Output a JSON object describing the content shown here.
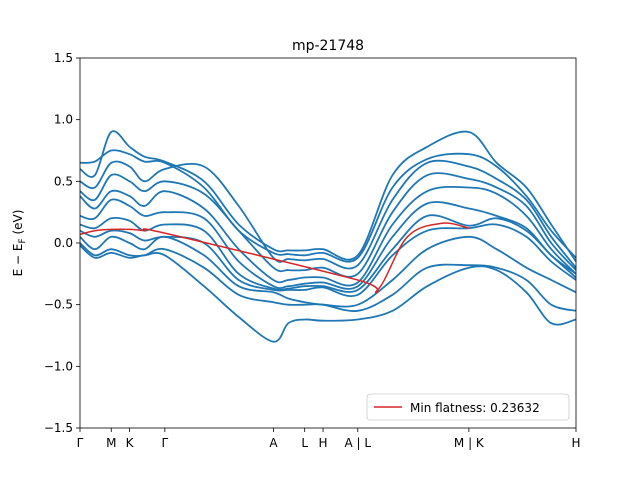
{
  "chart_data": {
    "type": "line",
    "title": "mp-21748",
    "xlabel": "",
    "ylabel": "E − E_F (eV)",
    "ylim": [
      -1.5,
      1.5
    ],
    "xlim": [
      0,
      10
    ],
    "yticks": [
      -1.5,
      -1.0,
      -0.5,
      0.0,
      0.5,
      1.0,
      1.5
    ],
    "ytick_labels": [
      "−1.5",
      "−1.0",
      "−0.5",
      "0.0",
      "0.5",
      "1.0",
      "1.5"
    ],
    "xticks": [
      {
        "x": 0.0,
        "label": "Γ"
      },
      {
        "x": 0.63,
        "label": "M"
      },
      {
        "x": 1.0,
        "label": "K"
      },
      {
        "x": 1.71,
        "label": "Γ"
      },
      {
        "x": 3.9,
        "label": "A"
      },
      {
        "x": 4.53,
        "label": "L"
      },
      {
        "x": 4.9,
        "label": "H"
      },
      {
        "x": 5.6,
        "label": "A | L"
      },
      {
        "x": 7.84,
        "label": "M | K"
      },
      {
        "x": 10.0,
        "label": "H"
      }
    ],
    "grid": false,
    "legend": {
      "position": "lower-right",
      "entries": [
        "Min flatness: 0.23632"
      ]
    },
    "colors": {
      "bands": "#1f77b4",
      "flat_band": "#d62728"
    },
    "series": [
      {
        "style": "bands",
        "x": [
          0.0,
          0.3,
          0.63,
          1.0,
          1.3,
          1.71,
          2.5,
          3.2,
          3.9,
          4.2,
          4.53,
          4.9,
          5.6,
          6.3,
          7.0,
          7.84,
          8.4,
          9.0,
          9.5,
          10.0
        ],
        "y": [
          0.65,
          0.66,
          0.75,
          0.72,
          0.66,
          0.65,
          0.45,
          0.1,
          -0.08,
          -0.09,
          -0.1,
          -0.08,
          -0.12,
          0.45,
          0.68,
          0.72,
          0.62,
          0.38,
          0.1,
          -0.12
        ]
      },
      {
        "style": "bands",
        "x": [
          0.0,
          0.3,
          0.63,
          1.0,
          1.3,
          1.71,
          2.5,
          3.2,
          3.9,
          4.2,
          4.53,
          4.9,
          5.6,
          6.3,
          7.0,
          7.84,
          8.4,
          9.0,
          9.5,
          10.0
        ],
        "y": [
          0.6,
          0.55,
          0.9,
          0.78,
          0.7,
          0.66,
          0.5,
          0.15,
          -0.05,
          -0.06,
          -0.06,
          -0.05,
          -0.1,
          0.55,
          0.78,
          0.9,
          0.65,
          0.45,
          0.15,
          -0.15
        ]
      },
      {
        "style": "bands",
        "x": [
          0.0,
          0.3,
          0.63,
          1.0,
          1.3,
          1.71,
          2.5,
          3.2,
          3.9,
          4.2,
          4.53,
          4.9,
          5.6,
          6.3,
          7.0,
          7.84,
          8.4,
          9.0,
          9.5,
          10.0
        ],
        "y": [
          0.5,
          0.45,
          0.65,
          0.62,
          0.5,
          0.6,
          0.62,
          0.3,
          -0.12,
          -0.13,
          -0.14,
          -0.13,
          -0.18,
          0.35,
          0.65,
          0.62,
          0.52,
          0.35,
          0.05,
          -0.2
        ]
      },
      {
        "style": "bands",
        "x": [
          0.0,
          0.3,
          0.63,
          1.0,
          1.3,
          1.71,
          2.5,
          3.2,
          3.9,
          4.2,
          4.53,
          4.9,
          5.6,
          6.3,
          7.0,
          7.84,
          8.4,
          9.0,
          9.5,
          10.0
        ],
        "y": [
          0.42,
          0.35,
          0.55,
          0.5,
          0.42,
          0.5,
          0.4,
          0.1,
          -0.2,
          -0.22,
          -0.22,
          -0.2,
          -0.25,
          0.25,
          0.55,
          0.52,
          0.45,
          0.3,
          0.0,
          -0.22
        ]
      },
      {
        "style": "bands",
        "x": [
          0.0,
          0.3,
          0.63,
          1.0,
          1.3,
          1.71,
          2.5,
          3.2,
          3.9,
          4.2,
          4.53,
          4.9,
          5.6,
          6.3,
          7.0,
          7.84,
          8.4,
          9.0,
          9.5,
          10.0
        ],
        "y": [
          0.38,
          0.28,
          0.42,
          0.38,
          0.3,
          0.42,
          0.28,
          -0.05,
          -0.3,
          -0.3,
          -0.28,
          -0.28,
          -0.32,
          0.15,
          0.42,
          0.45,
          0.4,
          0.22,
          -0.05,
          -0.25
        ]
      },
      {
        "style": "bands",
        "x": [
          0.0,
          0.3,
          0.63,
          1.0,
          1.3,
          1.71,
          2.5,
          3.2,
          3.9,
          4.2,
          4.53,
          4.9,
          5.6,
          6.3,
          7.0,
          7.84,
          8.4,
          9.0,
          9.5,
          10.0
        ],
        "y": [
          0.22,
          0.2,
          0.35,
          0.3,
          0.22,
          0.25,
          0.2,
          -0.15,
          -0.35,
          -0.35,
          -0.33,
          -0.32,
          -0.35,
          0.05,
          0.32,
          0.28,
          0.22,
          0.12,
          -0.1,
          -0.25
        ]
      },
      {
        "style": "bands",
        "x": [
          0.0,
          0.3,
          0.63,
          1.0,
          1.3,
          1.71,
          2.5,
          3.2,
          3.9,
          4.2,
          4.53,
          4.9,
          5.6,
          6.3,
          7.0,
          7.84,
          8.4,
          9.0,
          9.5,
          10.0
        ],
        "y": [
          0.15,
          0.12,
          0.2,
          0.18,
          0.1,
          0.15,
          0.1,
          -0.25,
          -0.37,
          -0.37,
          -0.35,
          -0.35,
          -0.38,
          -0.05,
          0.22,
          0.14,
          0.2,
          0.1,
          -0.1,
          -0.28
        ]
      },
      {
        "style": "bands",
        "x": [
          0.0,
          0.3,
          0.63,
          1.0,
          1.3,
          1.71,
          2.5,
          3.2,
          3.9,
          4.2,
          4.53,
          4.9,
          5.6,
          6.3,
          7.0,
          7.84,
          8.4,
          9.0,
          9.5,
          10.0
        ],
        "y": [
          0.1,
          0.05,
          0.1,
          0.08,
          0.02,
          0.05,
          0.0,
          -0.3,
          -0.38,
          -0.38,
          -0.38,
          -0.36,
          -0.42,
          -0.1,
          0.1,
          0.12,
          0.15,
          0.05,
          -0.15,
          -0.3
        ]
      },
      {
        "style": "bands",
        "x": [
          0.0,
          0.3,
          0.63,
          1.0,
          1.3,
          1.71,
          2.5,
          3.2,
          3.9,
          4.2,
          4.53,
          4.9,
          5.6,
          6.3,
          7.0,
          7.84,
          8.4,
          9.0,
          9.5,
          10.0
        ],
        "y": [
          0.05,
          -0.05,
          0.05,
          0.0,
          -0.05,
          0.05,
          -0.1,
          -0.35,
          -0.4,
          -0.45,
          -0.48,
          -0.5,
          -0.5,
          -0.3,
          -0.05,
          0.05,
          -0.05,
          -0.2,
          -0.3,
          -0.4
        ]
      },
      {
        "style": "bands",
        "x": [
          0.0,
          0.3,
          0.63,
          1.0,
          1.3,
          1.71,
          2.5,
          3.2,
          3.9,
          4.2,
          4.53,
          4.9,
          5.6,
          6.3,
          7.0,
          7.84,
          8.4,
          9.0,
          9.5,
          10.0
        ],
        "y": [
          0.0,
          -0.1,
          -0.05,
          -0.1,
          -0.1,
          -0.05,
          -0.2,
          -0.42,
          -0.48,
          -0.5,
          -0.5,
          -0.5,
          -0.55,
          -0.42,
          -0.2,
          -0.18,
          -0.2,
          -0.3,
          -0.5,
          -0.55
        ]
      },
      {
        "style": "bands",
        "x": [
          0.0,
          0.3,
          0.63,
          1.0,
          1.3,
          1.71,
          2.5,
          3.2,
          3.9,
          4.2,
          4.53,
          4.9,
          5.6,
          6.3,
          7.0,
          7.84,
          8.4,
          9.0,
          9.5,
          10.0
        ],
        "y": [
          -0.02,
          -0.12,
          -0.08,
          -0.12,
          -0.1,
          -0.1,
          -0.35,
          -0.6,
          -0.8,
          -0.65,
          -0.62,
          -0.63,
          -0.62,
          -0.55,
          -0.35,
          -0.2,
          -0.22,
          -0.4,
          -0.65,
          -0.62
        ]
      },
      {
        "style": "flat_band",
        "label": "Min flatness: 0.23632",
        "x": [
          0.0,
          0.3,
          0.63,
          1.0,
          1.3,
          1.71,
          5.6,
          6.0,
          6.6,
          7.3,
          7.84
        ],
        "y": [
          0.07,
          0.1,
          0.11,
          0.11,
          0.1,
          0.08,
          -0.3,
          -0.38,
          0.05,
          0.16,
          0.12
        ]
      }
    ]
  }
}
